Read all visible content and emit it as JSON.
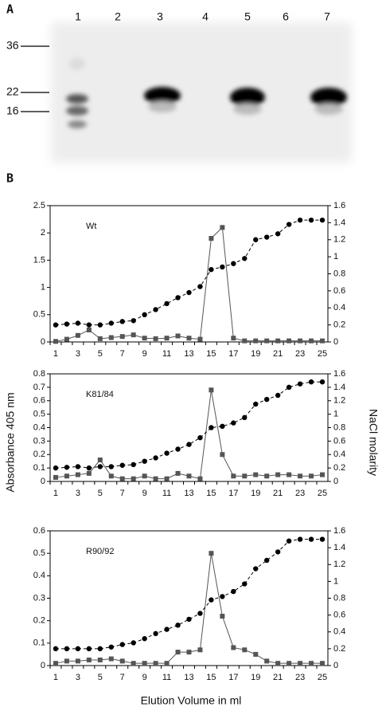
{
  "panel_a": {
    "label": "A",
    "lanes": [
      1,
      2,
      3,
      4,
      5,
      6,
      7
    ],
    "markers": [
      36,
      22,
      16
    ]
  },
  "panel_b_label": "B",
  "y_label": "Absorbance 405 nm",
  "y2_label": "NaCl molarity",
  "x_label": "Elution Volume in ml",
  "chart_data": [
    {
      "type": "line",
      "annotation": "Wt",
      "categories": [
        1,
        null,
        3,
        null,
        5,
        null,
        7,
        null,
        9,
        null,
        11,
        null,
        13,
        null,
        15,
        null,
        17,
        null,
        19,
        null,
        21,
        null,
        23,
        null,
        25
      ],
      "ylim": [
        0,
        2.5
      ],
      "yticks": [
        0,
        0.5,
        1,
        1.5,
        2,
        2.5
      ],
      "y2lim": [
        0,
        1.6
      ],
      "y2ticks": [
        0,
        0.2,
        0.4,
        0.6,
        0.8,
        1,
        1.2,
        1.4,
        1.6
      ],
      "series": [
        {
          "color": "#555555",
          "marker": "square",
          "dash": false,
          "values": [
            0.01,
            0.05,
            0.12,
            0.22,
            0.06,
            0.08,
            0.1,
            0.13,
            0.07,
            0.06,
            0.07,
            0.11,
            0.07,
            0.05,
            1.9,
            2.1,
            0.07,
            0.02,
            0.02,
            0.02,
            0.02,
            0.02,
            0.02,
            0.02,
            0.02
          ]
        },
        {
          "color": "#000000",
          "marker": "circle",
          "dash": true,
          "axis": "y2",
          "values": [
            0.2,
            0.21,
            0.22,
            0.2,
            0.2,
            0.22,
            0.24,
            0.25,
            0.32,
            0.38,
            0.45,
            0.52,
            0.58,
            0.65,
            0.85,
            0.88,
            0.92,
            0.98,
            1.2,
            1.23,
            1.27,
            1.38,
            1.43,
            1.43,
            1.43
          ]
        }
      ]
    },
    {
      "type": "line",
      "annotation": "K81/84",
      "categories": [
        1,
        null,
        3,
        null,
        5,
        null,
        7,
        null,
        9,
        null,
        11,
        null,
        13,
        null,
        15,
        null,
        17,
        null,
        19,
        null,
        21,
        null,
        23,
        null,
        25
      ],
      "ylim": [
        0,
        0.8
      ],
      "yticks": [
        0,
        0.1,
        0.2,
        0.3,
        0.4,
        0.5,
        0.6,
        0.7,
        0.8
      ],
      "y2lim": [
        0,
        1.6
      ],
      "y2ticks": [
        0,
        0.2,
        0.4,
        0.6,
        0.8,
        1,
        1.2,
        1.4,
        1.6
      ],
      "series": [
        {
          "color": "#555555",
          "marker": "square",
          "dash": false,
          "values": [
            0.03,
            0.04,
            0.05,
            0.06,
            0.16,
            0.04,
            0.02,
            0.02,
            0.04,
            0.02,
            0.02,
            0.06,
            0.04,
            0.02,
            0.68,
            0.2,
            0.04,
            0.04,
            0.05,
            0.04,
            0.05,
            0.05,
            0.04,
            0.04,
            0.05
          ]
        },
        {
          "color": "#000000",
          "marker": "circle",
          "dash": true,
          "axis": "y2",
          "values": [
            0.2,
            0.21,
            0.22,
            0.2,
            0.22,
            0.22,
            0.24,
            0.25,
            0.3,
            0.35,
            0.42,
            0.48,
            0.55,
            0.65,
            0.8,
            0.82,
            0.87,
            0.95,
            1.15,
            1.22,
            1.28,
            1.4,
            1.45,
            1.48,
            1.48
          ]
        }
      ]
    },
    {
      "type": "line",
      "annotation": "R90/92",
      "categories": [
        1,
        null,
        3,
        null,
        5,
        null,
        7,
        null,
        9,
        null,
        11,
        null,
        13,
        null,
        15,
        null,
        17,
        null,
        19,
        null,
        21,
        null,
        23,
        null,
        25
      ],
      "ylim": [
        0,
        0.6
      ],
      "yticks": [
        0,
        0.1,
        0.2,
        0.3,
        0.4,
        0.5,
        0.6
      ],
      "y2lim": [
        0,
        1.6
      ],
      "y2ticks": [
        0,
        0.2,
        0.4,
        0.6,
        0.8,
        1,
        1.2,
        1.4,
        1.6
      ],
      "series": [
        {
          "color": "#555555",
          "marker": "square",
          "dash": false,
          "values": [
            0.01,
            0.02,
            0.02,
            0.025,
            0.025,
            0.03,
            0.02,
            0.01,
            0.01,
            0.01,
            0.01,
            0.06,
            0.06,
            0.07,
            0.5,
            0.22,
            0.08,
            0.07,
            0.05,
            0.02,
            0.01,
            0.01,
            0.01,
            0.01,
            0.01
          ]
        },
        {
          "color": "#000000",
          "marker": "circle",
          "dash": true,
          "axis": "y2",
          "values": [
            0.2,
            0.2,
            0.2,
            0.2,
            0.2,
            0.22,
            0.25,
            0.27,
            0.32,
            0.38,
            0.43,
            0.48,
            0.55,
            0.62,
            0.78,
            0.82,
            0.88,
            0.97,
            1.15,
            1.25,
            1.35,
            1.48,
            1.5,
            1.5,
            1.5
          ]
        }
      ]
    }
  ]
}
